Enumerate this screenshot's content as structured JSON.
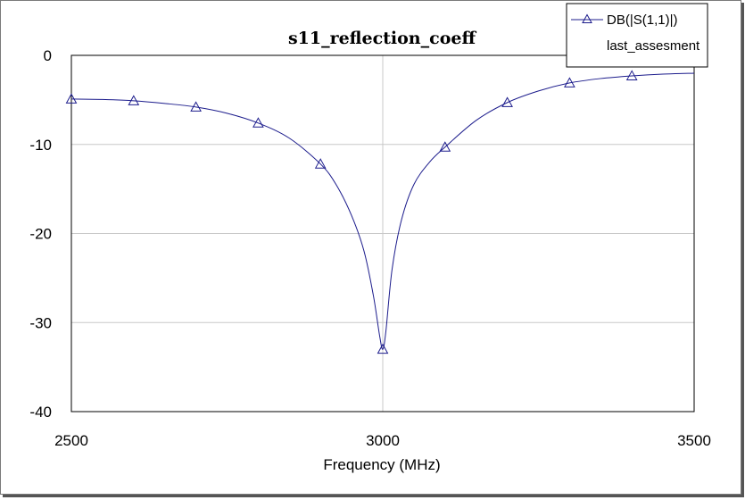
{
  "chart_data": {
    "type": "line",
    "title": "s11_reflection_coeff",
    "xlabel": "Frequency (MHz)",
    "ylabel": "",
    "xlim": [
      2500,
      3500
    ],
    "ylim": [
      -40,
      0
    ],
    "x_ticks": [
      2500,
      3000,
      3500
    ],
    "y_ticks": [
      0,
      -10,
      -20,
      -30,
      -40
    ],
    "x_tick_labels": [
      "2500",
      "3000",
      "3500"
    ],
    "y_tick_labels": [
      "0",
      "-10",
      "-20",
      "-30",
      "-40"
    ],
    "grid": true,
    "legend_position": "top-right",
    "legend_subtitle": "last_assesment",
    "line_color": "#1c1c8c",
    "series": [
      {
        "name": "DB(|S(1,1)|)",
        "marker": "triangle",
        "x": [
          2500,
          2550,
          2600,
          2650,
          2700,
          2750,
          2800,
          2850,
          2900,
          2925,
          2950,
          2970,
          2985,
          2995,
          3000,
          3005,
          3015,
          3030,
          3050,
          3075,
          3100,
          3150,
          3200,
          3250,
          3300,
          3350,
          3400,
          3450,
          3500
        ],
        "y": [
          -4.9,
          -4.95,
          -5.1,
          -5.4,
          -5.8,
          -6.5,
          -7.6,
          -9.3,
          -12.2,
          -14.5,
          -18.0,
          -22.0,
          -27.0,
          -31.5,
          -33.0,
          -31.0,
          -24.0,
          -18.5,
          -14.5,
          -12.0,
          -10.3,
          -7.3,
          -5.3,
          -4.0,
          -3.1,
          -2.6,
          -2.3,
          -2.1,
          -2.0
        ],
        "marker_x": [
          2500,
          2600,
          2700,
          2800,
          2900,
          3000,
          3100,
          3200,
          3300,
          3400
        ],
        "marker_y": [
          -4.9,
          -5.1,
          -5.8,
          -7.6,
          -12.2,
          -33.0,
          -10.3,
          -5.3,
          -3.1,
          -2.3
        ]
      }
    ]
  }
}
